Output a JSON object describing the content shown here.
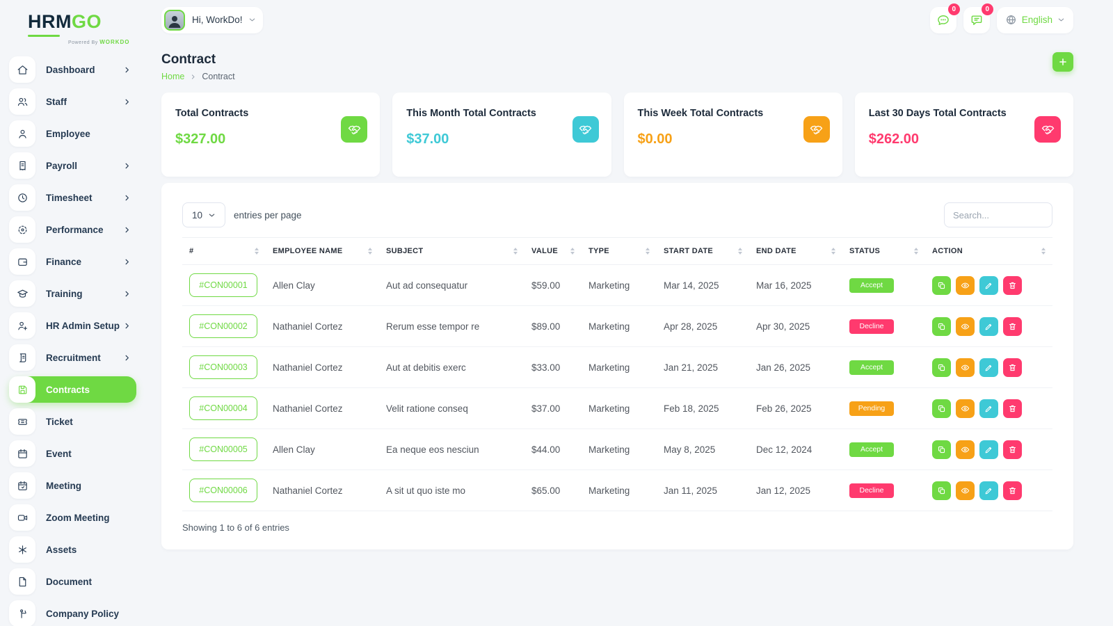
{
  "brand": {
    "name_part1": "HRM",
    "name_part2": "GO",
    "powered_by": "Powered By ",
    "powered_brand": "WORKDO"
  },
  "colors": {
    "green": "#6fd943",
    "cyan": "#3ec9d6",
    "orange": "#f7a117",
    "pink": "#ff3a6e"
  },
  "topbar": {
    "user_greeting": "Hi, WorkDo!",
    "messages_badge": "0",
    "notifications_badge": "0",
    "language": "English"
  },
  "sidebar": {
    "items": [
      {
        "label": "Dashboard",
        "icon": "home",
        "chevron": true,
        "active": false
      },
      {
        "label": "Staff",
        "icon": "users",
        "chevron": true,
        "active": false
      },
      {
        "label": "Employee",
        "icon": "user",
        "chevron": false,
        "active": false
      },
      {
        "label": "Payroll",
        "icon": "receipt",
        "chevron": true,
        "active": false
      },
      {
        "label": "Timesheet",
        "icon": "clock",
        "chevron": true,
        "active": false
      },
      {
        "label": "Performance",
        "icon": "target",
        "chevron": true,
        "active": false
      },
      {
        "label": "Finance",
        "icon": "wallet",
        "chevron": true,
        "active": false
      },
      {
        "label": "Training",
        "icon": "graduation-cap",
        "chevron": true,
        "active": false
      },
      {
        "label": "HR Admin Setup",
        "icon": "user-plus",
        "chevron": true,
        "active": false
      },
      {
        "label": "Recruitment",
        "icon": "scroll",
        "chevron": true,
        "active": false
      },
      {
        "label": "Contracts",
        "icon": "save",
        "chevron": false,
        "active": true
      },
      {
        "label": "Ticket",
        "icon": "ticket",
        "chevron": false,
        "active": false
      },
      {
        "label": "Event",
        "icon": "calendar",
        "chevron": false,
        "active": false
      },
      {
        "label": "Meeting",
        "icon": "calendar-check",
        "chevron": false,
        "active": false
      },
      {
        "label": "Zoom Meeting",
        "icon": "video",
        "chevron": false,
        "active": false
      },
      {
        "label": "Assets",
        "icon": "asterisk",
        "chevron": false,
        "active": false
      },
      {
        "label": "Document",
        "icon": "file",
        "chevron": false,
        "active": false
      },
      {
        "label": "Company Policy",
        "icon": "policy",
        "chevron": false,
        "active": false
      }
    ]
  },
  "page": {
    "title": "Contract",
    "breadcrumb_home": "Home",
    "breadcrumb_current": "Contract"
  },
  "cards": [
    {
      "title": "Total Contracts",
      "amount": "$327.00",
      "color": "green",
      "icon": "handshake"
    },
    {
      "title": "This Month Total Contracts",
      "amount": "$37.00",
      "color": "cyan",
      "icon": "handshake"
    },
    {
      "title": "This Week Total Contracts",
      "amount": "$0.00",
      "color": "orange",
      "icon": "handshake"
    },
    {
      "title": "Last 30 Days Total Contracts",
      "amount": "$262.00",
      "color": "pink",
      "icon": "handshake"
    }
  ],
  "table": {
    "entries_value": "10",
    "entries_label": "entries per page",
    "search_placeholder": "Search...",
    "headers": [
      "#",
      "Employee Name",
      "Subject",
      "Value",
      "Type",
      "Start Date",
      "End Date",
      "Status",
      "Action"
    ],
    "row_actions": [
      {
        "name": "duplicate",
        "icon": "copy",
        "color": "green"
      },
      {
        "name": "view",
        "icon": "eye",
        "color": "orange"
      },
      {
        "name": "edit",
        "icon": "pencil",
        "color": "cyan"
      },
      {
        "name": "delete",
        "icon": "trash",
        "color": "pink"
      }
    ],
    "rows": [
      {
        "id": "#CON00001",
        "employee": "Allen Clay",
        "subject": "Aut ad consequatur",
        "value": "$59.00",
        "type": "Marketing",
        "start": "Mar 14, 2025",
        "end": "Mar 16, 2025",
        "status": "Accept",
        "status_color": "green"
      },
      {
        "id": "#CON00002",
        "employee": "Nathaniel Cortez",
        "subject": "Rerum esse tempor re",
        "value": "$89.00",
        "type": "Marketing",
        "start": "Apr 28, 2025",
        "end": "Apr 30, 2025",
        "status": "Decline",
        "status_color": "pink"
      },
      {
        "id": "#CON00003",
        "employee": "Nathaniel Cortez",
        "subject": "Aut at debitis exerc",
        "value": "$33.00",
        "type": "Marketing",
        "start": "Jan 21, 2025",
        "end": "Jan 26, 2025",
        "status": "Accept",
        "status_color": "green"
      },
      {
        "id": "#CON00004",
        "employee": "Nathaniel Cortez",
        "subject": "Velit ratione conseq",
        "value": "$37.00",
        "type": "Marketing",
        "start": "Feb 18, 2025",
        "end": "Feb 26, 2025",
        "status": "Pending",
        "status_color": "orange"
      },
      {
        "id": "#CON00005",
        "employee": "Allen Clay",
        "subject": "Ea neque eos nesciun",
        "value": "$44.00",
        "type": "Marketing",
        "start": "May 8, 2025",
        "end": "Dec 12, 2024",
        "status": "Accept",
        "status_color": "green"
      },
      {
        "id": "#CON00006",
        "employee": "Nathaniel Cortez",
        "subject": "A sit ut quo iste mo",
        "value": "$65.00",
        "type": "Marketing",
        "start": "Jan 11, 2025",
        "end": "Jan 12, 2025",
        "status": "Decline",
        "status_color": "pink"
      }
    ],
    "footer": "Showing 1 to 6 of 6 entries"
  }
}
